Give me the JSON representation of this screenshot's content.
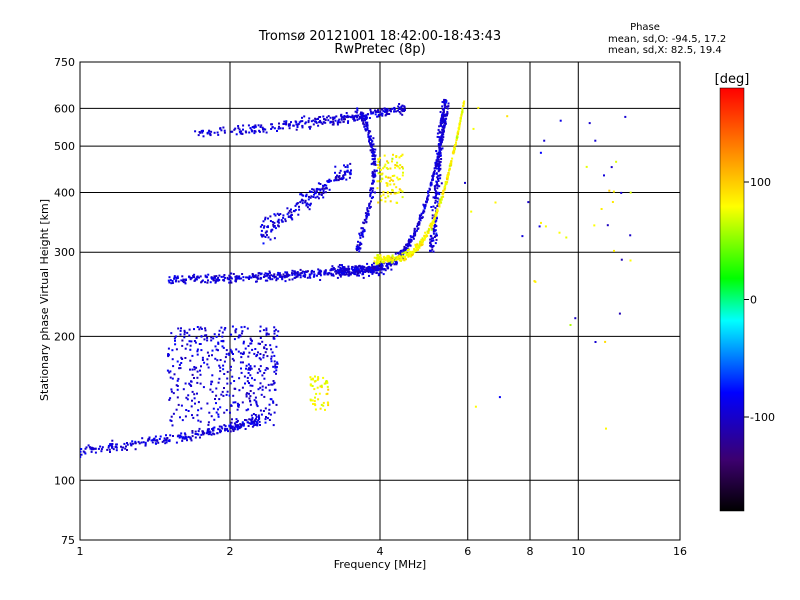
{
  "chart_data": {
    "type": "scatter",
    "title": "Tromsø 20121001 18:42:00-18:43:43",
    "subtitle": "RwPretec (8p)",
    "xlabel": "Frequency [MHz]",
    "ylabel": "Stationary phase Virtual Height [km]",
    "x_scale": "log",
    "y_scale": "log",
    "xlim": [
      1,
      16
    ],
    "ylim": [
      75,
      750
    ],
    "x_ticks": [
      1,
      2,
      4,
      6,
      8,
      10,
      16
    ],
    "y_ticks": [
      75,
      100,
      200,
      300,
      400,
      500,
      600,
      750
    ],
    "grid": true,
    "stats": {
      "heading": "Phase",
      "o_line": "mean, sd,O: -94.5, 17.2",
      "x_line": "mean, sd,X:  82.5, 19.4"
    },
    "colorbar": {
      "label": "[deg]",
      "ticks": [
        100,
        0,
        -100
      ],
      "range": [
        -180,
        180
      ],
      "colors": [
        "#000000",
        "#3c006e",
        "#0000ff",
        "#00ffff",
        "#00ff00",
        "#ffff00",
        "#ff8000",
        "#ff0000"
      ]
    },
    "series": [
      {
        "name": "O",
        "mean_phase": -94.5,
        "sd_phase": 17.2
      },
      {
        "name": "X",
        "mean_phase": 82.5,
        "sd_phase": 19.4
      }
    ]
  }
}
